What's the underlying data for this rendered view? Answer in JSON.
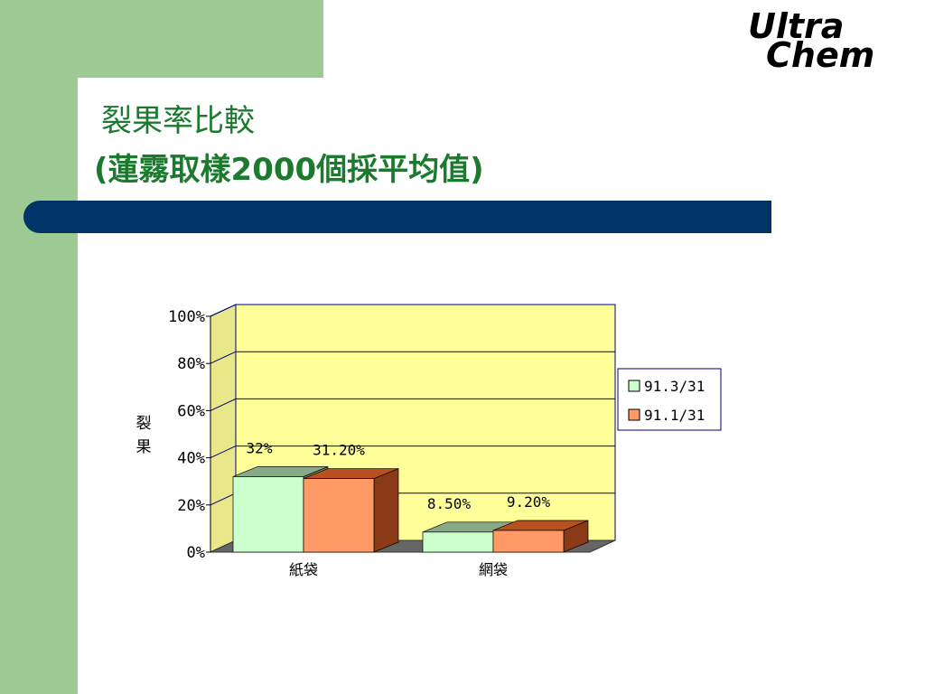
{
  "slide": {
    "title_line1": "裂果率比較",
    "title_line2": "(蓮霧取樣2000個採平均值)",
    "logo_line1": "Ultra",
    "logo_line2": "Chem"
  },
  "colors": {
    "green_panel": "#9dc993",
    "blue_bar": "#003366",
    "title_text": "#1b7a2e",
    "plot_background": "#ffff99",
    "series1_fill": "#ccffcc",
    "series2_fill": "#ff9966"
  },
  "chart_data": {
    "type": "bar",
    "categories": [
      "紙袋",
      "網袋"
    ],
    "series": [
      {
        "name": "91.3/31",
        "values": [
          32,
          8.5
        ],
        "labels": [
          "32%",
          "8.50%"
        ]
      },
      {
        "name": "91.1/31",
        "values": [
          31.2,
          9.2
        ],
        "labels": [
          "31.20%",
          "9.20%"
        ]
      }
    ],
    "ylabel": "裂果",
    "ylim": [
      0,
      100
    ],
    "yticks": [
      0,
      20,
      40,
      60,
      80,
      100
    ],
    "ytick_labels": [
      "0%",
      "20%",
      "40%",
      "60%",
      "80%",
      "100%"
    ],
    "legend_position": "right",
    "grid": true,
    "style": "3d-clustered-column"
  }
}
